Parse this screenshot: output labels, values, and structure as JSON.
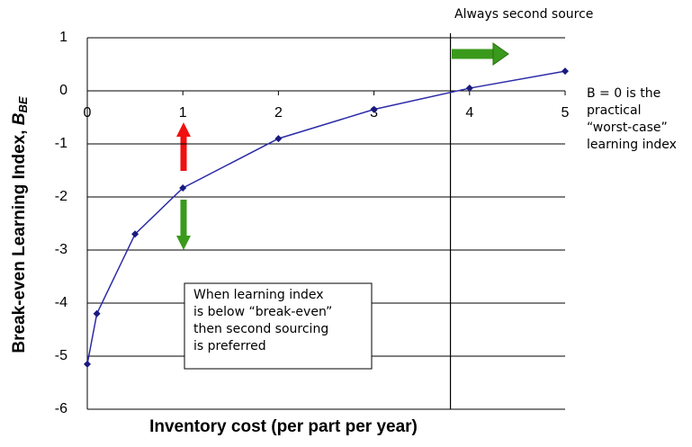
{
  "chart_data": {
    "type": "line",
    "xlabel": "Inventory cost (per part per year)",
    "ylabel": "Break-even Learning Index, ",
    "ylabel_var": "B",
    "ylabel_sub": "BE",
    "x": [
      0,
      0.1,
      0.5,
      1,
      2,
      3,
      4,
      5
    ],
    "series": [
      {
        "color": "#2b2ba8",
        "values": [
          -5.15,
          -4.2,
          -2.7,
          -1.83,
          -0.9,
          -0.35,
          0.05,
          0.37
        ]
      }
    ],
    "xlim": [
      0,
      5
    ],
    "ylim": [
      -6,
      1
    ],
    "xticks": [
      0,
      1,
      2,
      3,
      4,
      5
    ],
    "yticks": [
      1,
      0,
      -1,
      -2,
      -3,
      -4,
      -5,
      -6
    ],
    "grid": true,
    "threshold_x": 3.8,
    "annotations": {
      "top": "Always second source",
      "right": [
        "B = 0 is the",
        "practical",
        "“worst-case”",
        "learning index"
      ],
      "box": [
        "When learning index",
        "is below “break-even”",
        "then second sourcing",
        "is preferred"
      ]
    }
  }
}
